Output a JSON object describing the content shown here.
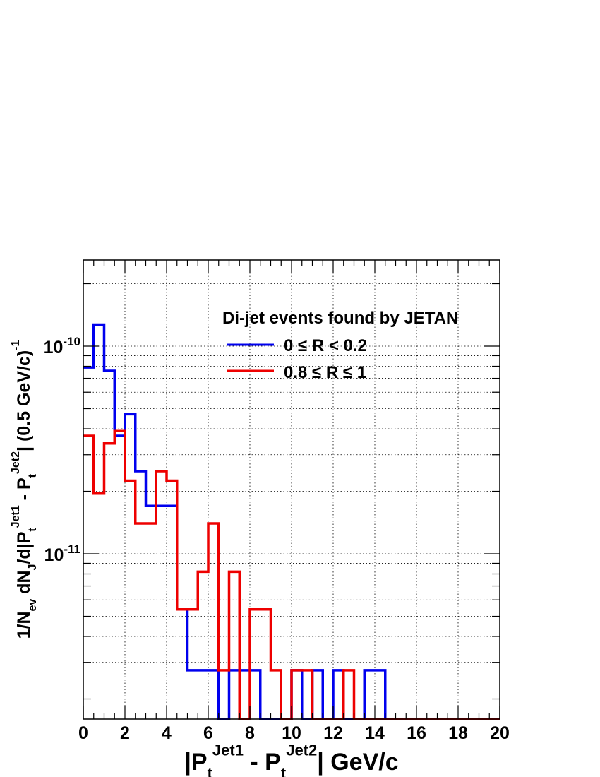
{
  "chart_data": {
    "type": "line",
    "subtype": "step-histogram",
    "x_scale": "linear",
    "y_scale": "log",
    "xlim": [
      0,
      20
    ],
    "ylim": [
      1.6e-12,
      2.6e-10
    ],
    "grid": true,
    "bin_width": 0.5,
    "x_ticks": [
      0,
      2,
      4,
      6,
      8,
      10,
      12,
      14,
      16,
      18,
      20
    ],
    "x_tick_labels": [
      "0",
      "2",
      "4",
      "6",
      "8",
      "10",
      "12",
      "14",
      "16",
      "18",
      "20"
    ],
    "y_tick_labels": [
      {
        "mantissa": "10",
        "exponent": "-10",
        "value": 1e-10
      },
      {
        "mantissa": "10",
        "exponent": "-11",
        "value": 1e-11
      }
    ],
    "xlabel": {
      "parts": [
        "|P",
        "t",
        "Jet1",
        " - P",
        "t",
        "Jet2",
        "|  GeV/c"
      ]
    },
    "ylabel": {
      "parts": [
        "1/N",
        "ev",
        " dN",
        "J",
        "/d|P",
        "t",
        "Jet1",
        " - P",
        "t",
        "Jet2",
        "| (0.5 GeV/c)",
        "-1"
      ]
    },
    "legend": {
      "title": "Di-jet events found by JETAN",
      "placement": "top-right"
    },
    "series": [
      {
        "name": "0 ≤ R < 0.2",
        "color": "#0000ee",
        "bin_edges": [
          0,
          0.5,
          1,
          1.5,
          2,
          2.5,
          3,
          3.5,
          4,
          4.5,
          5,
          5.5,
          6,
          6.5,
          7,
          7.5,
          8,
          8.5,
          9,
          9.5,
          10,
          10.5,
          11,
          11.5,
          12,
          12.5,
          13,
          13.5,
          14,
          14.5,
          15,
          15.5,
          16,
          16.5,
          17,
          17.5,
          18,
          18.5,
          19,
          19.5,
          20
        ],
        "values": [
          7.9e-11,
          1.27e-10,
          7.6e-11,
          3.7e-11,
          4.7e-11,
          2.5e-11,
          1.7e-11,
          1.7e-11,
          1.7e-11,
          5.4e-12,
          2.75e-12,
          2.75e-12,
          2.75e-12,
          0,
          2.75e-12,
          2.75e-12,
          2.75e-12,
          0,
          0,
          0,
          2.75e-12,
          0,
          2.75e-12,
          0,
          2.75e-12,
          0,
          0,
          2.75e-12,
          2.75e-12,
          0,
          0,
          0,
          0,
          0,
          0,
          0,
          0,
          0,
          0,
          0
        ]
      },
      {
        "name": "0.8 ≤ R ≤ 1",
        "color": "#ee0000",
        "bin_edges": [
          0,
          0.5,
          1,
          1.5,
          2,
          2.5,
          3,
          3.5,
          4,
          4.5,
          5,
          5.5,
          6,
          6.5,
          7,
          7.5,
          8,
          8.5,
          9,
          9.5,
          10,
          10.5,
          11,
          11.5,
          12,
          12.5,
          13,
          13.5,
          14,
          14.5,
          15,
          15.5,
          16,
          16.5,
          17,
          17.5,
          18,
          18.5,
          19,
          19.5,
          20
        ],
        "values": [
          3.7e-11,
          1.95e-11,
          3.4e-11,
          3.9e-11,
          2.25e-11,
          1.4e-11,
          1.4e-11,
          2.5e-11,
          2.25e-11,
          5.4e-12,
          5.4e-12,
          8.2e-12,
          1.4e-11,
          2.75e-12,
          8.2e-12,
          0,
          5.4e-12,
          5.4e-12,
          2.75e-12,
          0,
          2.75e-12,
          2.75e-12,
          0,
          0,
          0,
          2.75e-12,
          0,
          0,
          0,
          0,
          0,
          0,
          0,
          0,
          0,
          0,
          0,
          0,
          0,
          0
        ]
      }
    ]
  }
}
